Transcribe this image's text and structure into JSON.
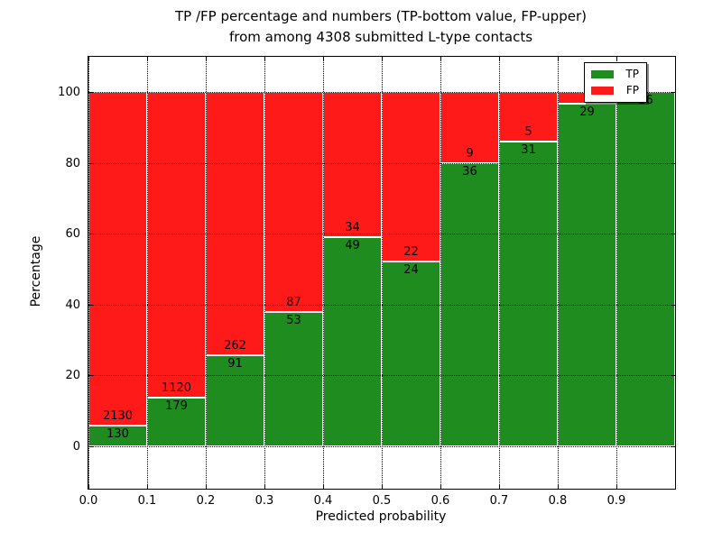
{
  "title": {
    "line1": "TP /FP percentage and numbers (TP-bottom value, FP-upper)",
    "line2": "from among 4308 submitted L-type contacts"
  },
  "legend": {
    "items": [
      {
        "label": "TP",
        "color": "#1e8c1e"
      },
      {
        "label": "FP",
        "color": "#ff1a1a"
      }
    ]
  },
  "chart_data": {
    "type": "bar",
    "stacked": true,
    "title": "TP /FP percentage and numbers (TP-bottom value, FP-upper) from among 4308 submitted L-type contacts",
    "xlabel": "Predicted probability",
    "ylabel": "Percentage",
    "total_submitted_contacts_in_title": 4308,
    "bins": [
      0.0,
      0.1,
      0.2,
      0.3,
      0.4,
      0.5,
      0.6,
      0.7,
      0.8,
      0.9
    ],
    "bin_width": 0.1,
    "series": [
      {
        "name": "TP",
        "color": "#1e8c1e",
        "counts": [
          130,
          179,
          91,
          53,
          49,
          24,
          36,
          31,
          29,
          16
        ],
        "pct": [
          5.75,
          13.78,
          25.78,
          37.86,
          59.04,
          52.17,
          80.0,
          86.11,
          96.67,
          100.0
        ]
      },
      {
        "name": "FP",
        "color": "#ff1a1a",
        "counts": [
          2130,
          1120,
          262,
          87,
          34,
          22,
          9,
          5,
          1,
          0
        ],
        "pct": [
          94.25,
          86.22,
          74.22,
          62.14,
          40.96,
          47.83,
          20.0,
          13.89,
          3.33,
          0.0
        ]
      }
    ],
    "bar_value_labels": {
      "tp": [
        "130",
        "179",
        "91",
        "53",
        "49",
        "24",
        "36",
        "31",
        "29",
        "16"
      ],
      "fp": [
        "2130",
        "1120",
        "262",
        "87",
        "34",
        "22",
        "9",
        "5",
        "1",
        ""
      ]
    },
    "xticks": {
      "values": [
        0.0,
        0.1,
        0.2,
        0.3,
        0.4,
        0.5,
        0.6,
        0.7,
        0.8,
        0.9
      ],
      "labels": [
        "0.0",
        "0.1",
        "0.2",
        "0.3",
        "0.4",
        "0.5",
        "0.6",
        "0.7",
        "0.8",
        "0.9"
      ]
    },
    "yticks": {
      "values": [
        0,
        20,
        40,
        60,
        80,
        100
      ],
      "labels": [
        "0",
        "20",
        "40",
        "60",
        "80",
        "100"
      ]
    },
    "xlim": [
      0.0,
      1.0
    ],
    "ylim": [
      -12,
      110
    ],
    "grid": "dotted",
    "legend_position": "upper right"
  }
}
